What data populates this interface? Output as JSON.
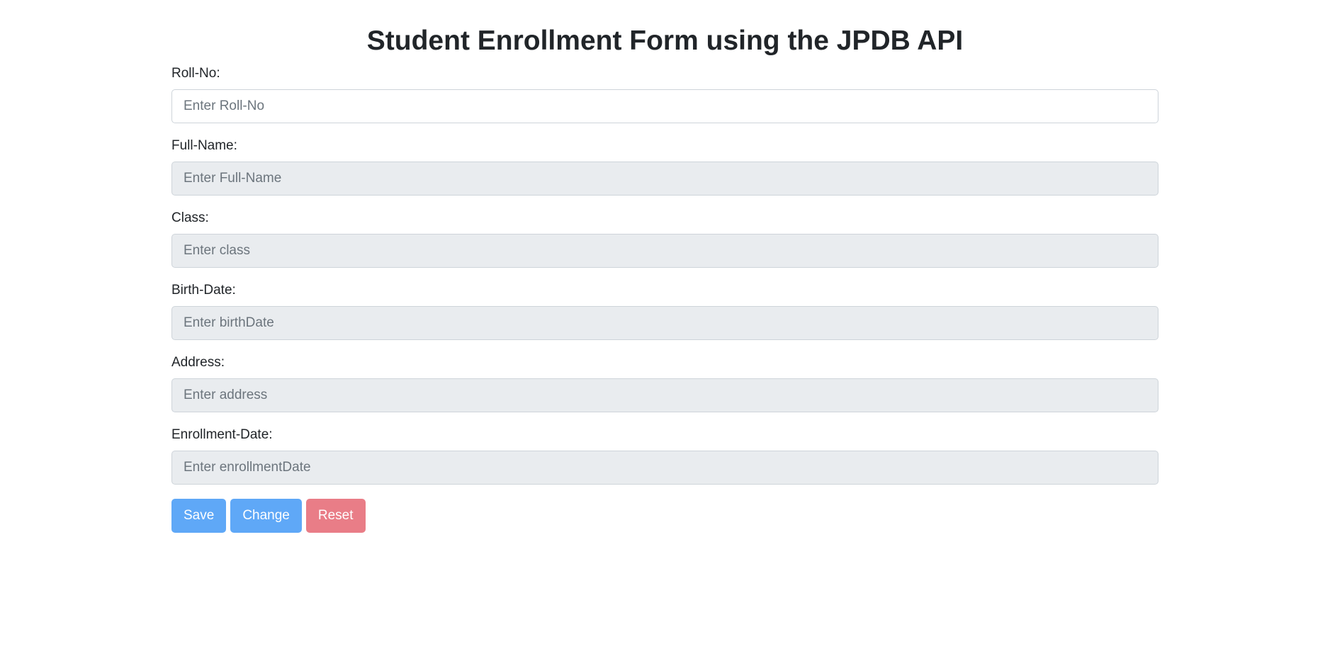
{
  "page": {
    "title": "Student Enrollment Form using the JPDB API"
  },
  "form": {
    "fields": [
      {
        "label": "Roll-No:",
        "placeholder": "Enter Roll-No",
        "value": "",
        "state": "enabled"
      },
      {
        "label": "Full-Name:",
        "placeholder": "Enter Full-Name",
        "value": "",
        "state": "disabled"
      },
      {
        "label": "Class:",
        "placeholder": "Enter class",
        "value": "",
        "state": "disabled"
      },
      {
        "label": "Birth-Date:",
        "placeholder": "Enter birthDate",
        "value": "",
        "state": "disabled"
      },
      {
        "label": "Address:",
        "placeholder": "Enter address",
        "value": "",
        "state": "disabled"
      },
      {
        "label": "Enrollment-Date:",
        "placeholder": "Enter enrollmentDate",
        "value": "",
        "state": "disabled"
      }
    ]
  },
  "actions": {
    "save_label": "Save",
    "change_label": "Change",
    "reset_label": "Reset"
  },
  "colors": {
    "primary_button": "#5fa8f7",
    "danger_button": "#e97d87",
    "disabled_input_bg": "#e9ecef",
    "text": "#212529"
  }
}
